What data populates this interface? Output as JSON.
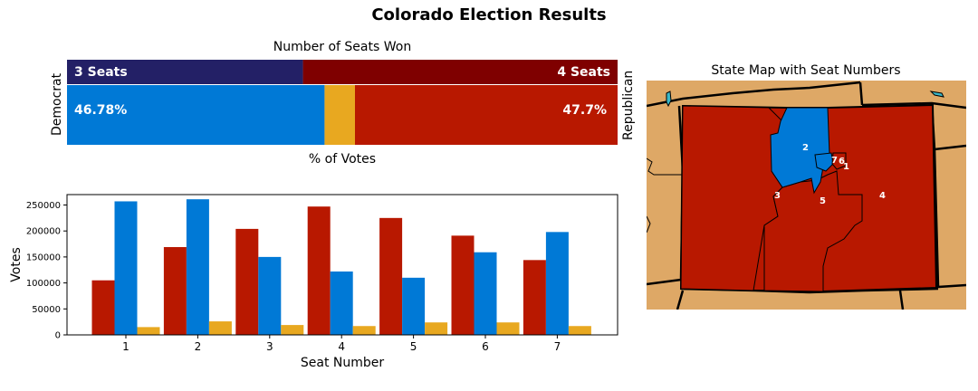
{
  "title": "Colorado Election Results",
  "colors": {
    "dem_seats": "#232066",
    "rep_seats": "#7f0000",
    "dem_votes": "#0079d6",
    "other_votes": "#e8a820",
    "rep_votes": "#b81800",
    "map_background": "#dea866"
  },
  "seat_bar": {
    "title": "Number of Seats Won",
    "dem_seats": 3,
    "rep_seats": 4,
    "dem_label": "3 Seats",
    "rep_label": "4 Seats",
    "dem_side_label": "Democrat",
    "rep_side_label": "Republican"
  },
  "vote_bar": {
    "caption": "% of Votes",
    "dem_pct": 46.78,
    "rep_pct": 47.7,
    "dem_label": "46.78%",
    "rep_label": "47.7%"
  },
  "chart_data": [
    {
      "type": "bar",
      "title": "Number of Seats Won",
      "categories": [
        "Democrat",
        "Republican"
      ],
      "values": [
        3,
        4
      ]
    },
    {
      "type": "bar",
      "title": "",
      "xlabel": "Seat Number",
      "ylabel": "Votes",
      "categories": [
        "1",
        "2",
        "3",
        "4",
        "5",
        "6",
        "7"
      ],
      "ylim": [
        0,
        270000
      ],
      "yticks": [
        0,
        50000,
        100000,
        150000,
        200000,
        250000
      ],
      "series": [
        {
          "color": "#b81800",
          "values": [
            105000,
            169000,
            204000,
            247000,
            225000,
            191000,
            144000
          ]
        },
        {
          "color": "#0079d6",
          "values": [
            257000,
            261000,
            150000,
            122000,
            110000,
            159000,
            198000
          ]
        },
        {
          "color": "#e8a820",
          "values": [
            15000,
            26000,
            19000,
            17000,
            24000,
            24000,
            17000
          ]
        }
      ]
    }
  ],
  "map": {
    "title": "State Map with Seat Numbers",
    "seat_labels": [
      "1",
      "2",
      "3",
      "4",
      "5",
      "6",
      "7"
    ]
  }
}
